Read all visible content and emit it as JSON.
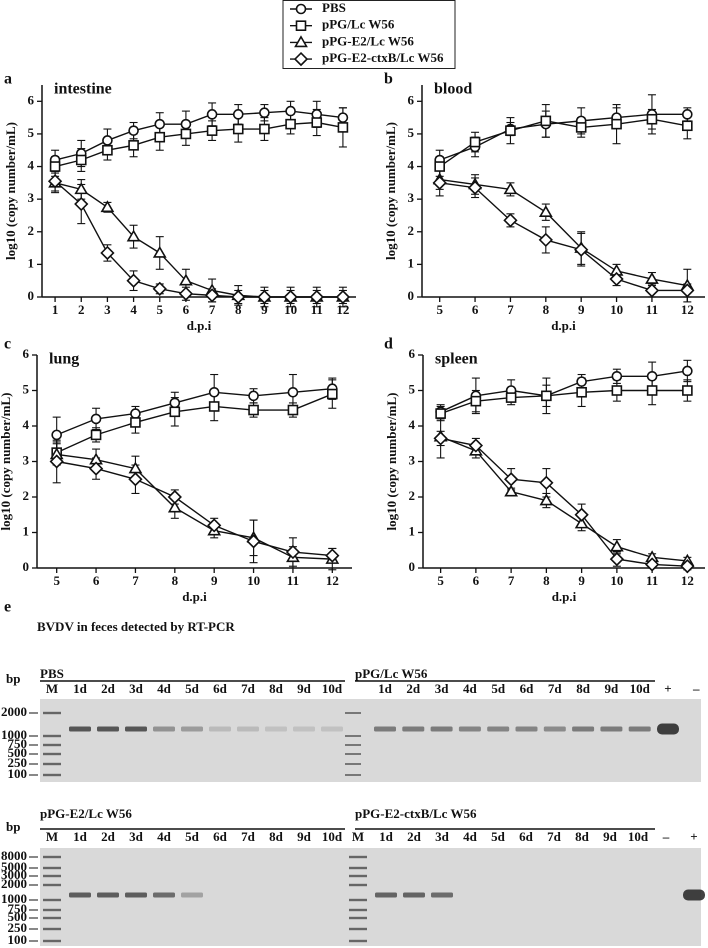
{
  "legend": [
    {
      "name": "PBS",
      "marker": "circle"
    },
    {
      "name": "pPG/Lc W56",
      "marker": "square"
    },
    {
      "name": "pPG-E2/Lc W56",
      "marker": "triangle"
    },
    {
      "name": "pPG-E2-ctxB/Lc W56",
      "marker": "diamond"
    }
  ],
  "chart_data": [
    {
      "type": "line",
      "panel": "a",
      "title": "intestine",
      "xlabel": "d.p.i",
      "ylabel": "log10 (copy number/mL)",
      "x": [
        1,
        2,
        3,
        4,
        5,
        6,
        7,
        8,
        9,
        10,
        11,
        12
      ],
      "xlim": [
        0.5,
        12.5
      ],
      "xticks": [
        1,
        2,
        3,
        4,
        5,
        6,
        7,
        8,
        9,
        10,
        11,
        12
      ],
      "ylim": [
        0,
        6.5
      ],
      "yticks": [
        0,
        1,
        2,
        3,
        4,
        5,
        6
      ],
      "series": [
        {
          "values": [
            4.2,
            4.4,
            4.8,
            5.1,
            5.3,
            5.3,
            5.6,
            5.6,
            5.65,
            5.7,
            5.6,
            5.5
          ],
          "errors": [
            0.3,
            0.4,
            0.35,
            0.25,
            0.35,
            0.4,
            0.35,
            0.3,
            0.25,
            0.3,
            0.4,
            0.3
          ]
        },
        {
          "values": [
            4.0,
            4.2,
            4.5,
            4.65,
            4.9,
            5.0,
            5.1,
            5.15,
            5.15,
            5.3,
            5.35,
            5.2
          ],
          "errors": [
            0.3,
            0.35,
            0.3,
            0.35,
            0.4,
            0.35,
            0.3,
            0.4,
            0.35,
            0.3,
            0.4,
            0.6
          ]
        },
        {
          "values": [
            3.5,
            3.3,
            2.75,
            1.85,
            1.35,
            0.5,
            0.2,
            0.05,
            0,
            0,
            0,
            0
          ],
          "errors": [
            0.3,
            0.3,
            0.15,
            0.35,
            0.5,
            0.35,
            0.35,
            0.3,
            0.3,
            0.3,
            0.3,
            0.3
          ]
        },
        {
          "values": [
            3.55,
            2.85,
            1.35,
            0.5,
            0.25,
            0.1,
            0.05,
            0,
            0,
            0,
            0,
            0
          ],
          "errors": [
            0.3,
            0.6,
            0.25,
            0.3,
            0.15,
            0.2,
            0.2,
            0.2,
            0.2,
            0.2,
            0.2,
            0.2
          ]
        }
      ]
    },
    {
      "type": "line",
      "panel": "b",
      "title": "blood",
      "xlabel": "d.p.i",
      "ylabel": "log10 (copy number/mL)",
      "x": [
        5,
        6,
        7,
        8,
        9,
        10,
        11,
        12
      ],
      "xlim": [
        4.5,
        12.5
      ],
      "xticks": [
        5,
        6,
        7,
        8,
        9,
        10,
        11,
        12
      ],
      "ylim": [
        0,
        6.5
      ],
      "yticks": [
        0,
        1,
        2,
        3,
        4,
        5,
        6
      ],
      "series": [
        {
          "values": [
            4.2,
            4.6,
            5.15,
            5.3,
            5.4,
            5.5,
            5.6,
            5.6
          ],
          "errors": [
            0.3,
            0.3,
            0.2,
            0.4,
            0.4,
            0.3,
            0.6,
            0.2
          ]
        },
        {
          "values": [
            4.0,
            4.75,
            5.1,
            5.4,
            5.2,
            5.3,
            5.45,
            5.25
          ],
          "errors": [
            0.3,
            0.3,
            0.4,
            0.5,
            0.3,
            0.6,
            0.3,
            0.4
          ]
        },
        {
          "values": [
            3.6,
            3.45,
            3.3,
            2.6,
            1.5,
            0.8,
            0.55,
            0.35
          ],
          "errors": [
            0.3,
            0.3,
            0.2,
            0.25,
            0.5,
            0.2,
            0.2,
            0.5
          ]
        },
        {
          "values": [
            3.5,
            3.35,
            2.35,
            1.75,
            1.45,
            0.55,
            0.2,
            0.2
          ],
          "errors": [
            0.4,
            0.3,
            0.2,
            0.4,
            0.5,
            0.2,
            0.2,
            0.2
          ]
        }
      ]
    },
    {
      "type": "line",
      "panel": "c",
      "title": "lung",
      "xlabel": "d.p.i",
      "ylabel": "log10 (copy number/mL)",
      "x": [
        5,
        6,
        7,
        8,
        9,
        10,
        11,
        12
      ],
      "xlim": [
        4.5,
        12.5
      ],
      "xticks": [
        5,
        6,
        7,
        8,
        9,
        10,
        11,
        12
      ],
      "ylim": [
        0,
        6
      ],
      "yticks": [
        0,
        1,
        2,
        3,
        4,
        5,
        6
      ],
      "series": [
        {
          "values": [
            3.75,
            4.2,
            4.35,
            4.65,
            4.95,
            4.85,
            4.95,
            5.05
          ],
          "errors": [
            0.5,
            0.3,
            0.2,
            0.3,
            0.5,
            0.2,
            0.5,
            0.3
          ]
        },
        {
          "values": [
            3.25,
            3.75,
            4.1,
            4.4,
            4.55,
            4.45,
            4.45,
            4.9
          ],
          "errors": [
            0.3,
            0.2,
            0.3,
            0.4,
            0.4,
            0.2,
            0.2,
            0.4
          ]
        },
        {
          "values": [
            3.2,
            3.05,
            2.8,
            1.7,
            1.05,
            0.85,
            0.3,
            0.25
          ],
          "errors": [
            0.3,
            0.3,
            0.35,
            0.3,
            0.2,
            0.5,
            0.3,
            0.3
          ]
        },
        {
          "values": [
            3.0,
            2.8,
            2.5,
            2.0,
            1.2,
            0.75,
            0.45,
            0.35
          ],
          "errors": [
            0.6,
            0.3,
            0.4,
            0.2,
            0.2,
            0.6,
            0.4,
            0.2
          ]
        }
      ]
    },
    {
      "type": "line",
      "panel": "d",
      "title": "spleen",
      "xlabel": "d.p.i",
      "ylabel": "log10 (copy number/mL)",
      "x": [
        5,
        6,
        7,
        8,
        9,
        10,
        11,
        12
      ],
      "xlim": [
        4.5,
        12.5
      ],
      "xticks": [
        5,
        6,
        7,
        8,
        9,
        10,
        11,
        12
      ],
      "ylim": [
        0,
        6
      ],
      "yticks": [
        0,
        1,
        2,
        3,
        4,
        5,
        6
      ],
      "series": [
        {
          "values": [
            4.4,
            4.85,
            5.0,
            4.85,
            5.25,
            5.4,
            5.4,
            5.55
          ],
          "errors": [
            0.2,
            0.5,
            0.3,
            0.5,
            0.2,
            0.2,
            0.4,
            0.3
          ]
        },
        {
          "values": [
            4.35,
            4.7,
            4.8,
            4.85,
            4.95,
            5.0,
            5.0,
            5.0
          ],
          "errors": [
            0.2,
            0.3,
            0.2,
            0.3,
            0.4,
            0.3,
            0.4,
            0.3
          ]
        },
        {
          "values": [
            3.7,
            3.3,
            2.15,
            1.9,
            1.25,
            0.6,
            0.3,
            0.2
          ],
          "errors": [
            0.6,
            0.2,
            0.1,
            0.2,
            0.2,
            0.2,
            0.1,
            0.1
          ]
        },
        {
          "values": [
            3.65,
            3.45,
            2.5,
            2.4,
            1.5,
            0.25,
            0.1,
            0.05
          ],
          "errors": [
            0.2,
            0.2,
            0.3,
            0.4,
            0.3,
            0.2,
            0.1,
            0.1
          ]
        }
      ]
    }
  ],
  "gel": {
    "panel": "e",
    "title": "BVDV in feces detected by RT-PCR",
    "rows": [
      {
        "bp_label": "bp",
        "markers": [
          "2000",
          "1000",
          "750",
          "500",
          "250",
          "100"
        ],
        "panels": [
          {
            "name": "PBS",
            "lanes": [
              "M",
              "1d",
              "2d",
              "3d",
              "4d",
              "5d",
              "6d",
              "7d",
              "8d",
              "9d",
              "10d"
            ]
          },
          {
            "name": "pPG/Lc W56",
            "lanes": [
              "1d",
              "2d",
              "3d",
              "4d",
              "5d",
              "6d",
              "7d",
              "8d",
              "9d",
              "10d",
              "+",
              "–"
            ]
          }
        ]
      },
      {
        "bp_label": "bp",
        "markers": [
          "8000",
          "5000",
          "3000",
          "2000",
          "1000",
          "750",
          "500",
          "250",
          "100"
        ],
        "panels": [
          {
            "name": "pPG-E2/Lc W56",
            "lanes": [
              "M",
              "1d",
              "2d",
              "3d",
              "4d",
              "5d",
              "6d",
              "7d",
              "8d",
              "9d",
              "10d"
            ]
          },
          {
            "name": "pPG-E2-ctxB/Lc W56",
            "lanes": [
              "M",
              "1d",
              "2d",
              "3d",
              "4d",
              "5d",
              "6d",
              "7d",
              "8d",
              "9d",
              "10d",
              "–",
              "+"
            ]
          }
        ]
      }
    ]
  }
}
